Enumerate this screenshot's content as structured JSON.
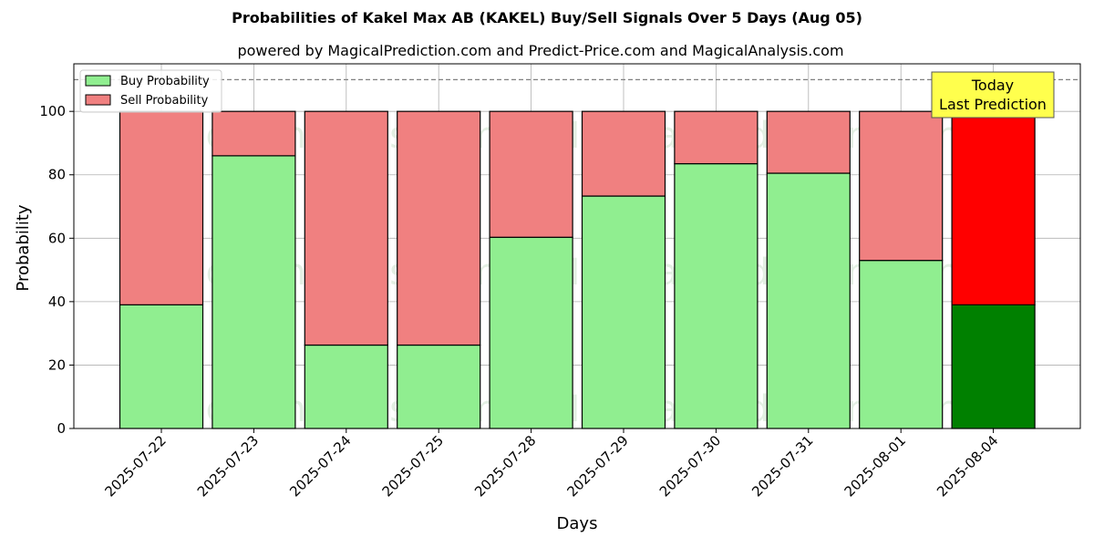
{
  "chart_data": {
    "type": "bar",
    "stacked": true,
    "title": "Probabilities of Kakel Max AB (KAKEL) Buy/Sell Signals Over 5 Days (Aug 05)",
    "subtitle": "powered by MagicalPrediction.com and Predict-Price.com and MagicalAnalysis.com",
    "xlabel": "Days",
    "ylabel": "Probability",
    "ylim": [
      0,
      115
    ],
    "yticks": [
      0,
      20,
      40,
      60,
      80,
      100
    ],
    "grid": true,
    "categories": [
      "2025-07-22",
      "2025-07-23",
      "2025-07-24",
      "2025-07-25",
      "2025-07-28",
      "2025-07-29",
      "2025-07-30",
      "2025-07-31",
      "2025-08-01",
      "2025-08-04"
    ],
    "series": [
      {
        "name": "Buy Probability",
        "color": "#90ee90",
        "values": [
          39,
          86,
          26.3,
          26.3,
          60.3,
          73.3,
          83.5,
          80.5,
          53,
          39
        ]
      },
      {
        "name": "Sell Probability",
        "color": "#f08080",
        "values": [
          61,
          14,
          73.7,
          73.7,
          39.7,
          26.7,
          16.5,
          19.5,
          47,
          61
        ]
      }
    ],
    "highlight": {
      "index": 9,
      "buy_color": "#008000",
      "sell_color": "#ff0000"
    },
    "reference_line": {
      "y": 110,
      "style": "dashed",
      "color": "#808080"
    },
    "legend": {
      "placement": "top-left",
      "entries": [
        "Buy Probability",
        "Sell Probability"
      ]
    },
    "annotation": {
      "lines": [
        "Today",
        "Last Prediction"
      ],
      "background": "#ffff4d"
    },
    "watermarks": [
      "MagicalAnalysis.com",
      "MagicalPrediction.com"
    ]
  }
}
